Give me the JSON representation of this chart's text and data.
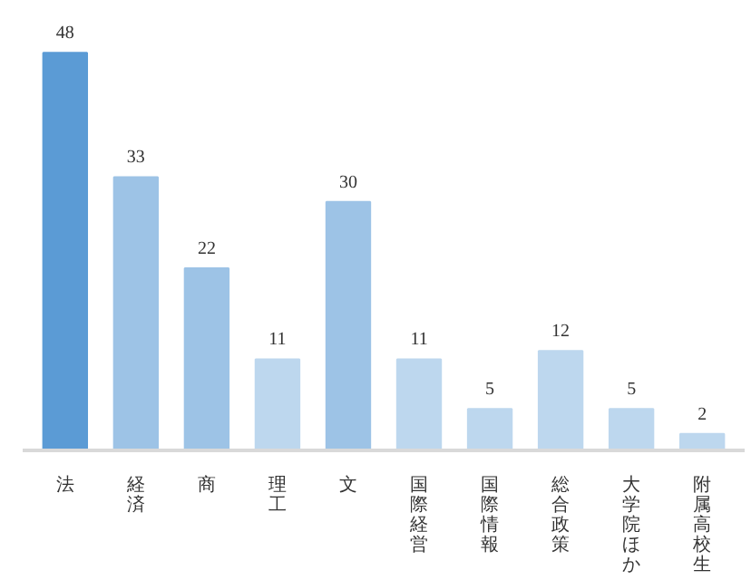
{
  "chart_data": {
    "type": "bar",
    "categories": [
      "法",
      "経済",
      "商",
      "理工",
      "文",
      "国際経営",
      "国際情報",
      "総合政策",
      "大学院ほか",
      "附属高校生"
    ],
    "values": [
      48,
      33,
      22,
      11,
      30,
      11,
      5,
      12,
      5,
      2
    ],
    "colors": [
      "#5b9bd5",
      "#9dc3e6",
      "#9dc3e6",
      "#bdd7ee",
      "#9dc3e6",
      "#bdd7ee",
      "#bdd7ee",
      "#bdd7ee",
      "#bdd7ee",
      "#bdd7ee"
    ],
    "data_labels": true
  }
}
